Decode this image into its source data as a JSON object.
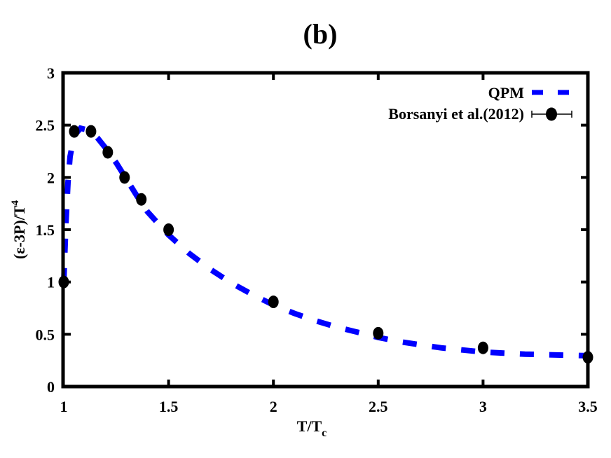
{
  "chart_data": {
    "type": "line",
    "title": "(b)",
    "xlabel": "T/T_c",
    "xlabel_main": "T/T",
    "xlabel_sub": "c",
    "ylabel": "(ε-3P)/T^4",
    "ylabel_main": "(ε-3P)/T",
    "ylabel_sup": "4",
    "xlim": [
      1,
      3.5
    ],
    "ylim": [
      0,
      3
    ],
    "xticks": [
      1,
      1.5,
      2,
      2.5,
      3,
      3.5
    ],
    "xtick_labels": [
      "1",
      "1.5",
      "2",
      "2.5",
      "3",
      "3.5"
    ],
    "yticks": [
      0,
      0.5,
      1,
      1.5,
      2,
      2.5,
      3
    ],
    "ytick_labels": [
      "0",
      "0.5",
      "1",
      "1.5",
      "2",
      "2.5",
      "3"
    ],
    "grid": false,
    "legend_position": "top-right",
    "series": [
      {
        "name": "QPM",
        "style": "dashed-line",
        "color": "#0000ff",
        "x": [
          1.0,
          1.01,
          1.02,
          1.03,
          1.05,
          1.08,
          1.12,
          1.16,
          1.2,
          1.25,
          1.3,
          1.35,
          1.4,
          1.5,
          1.6,
          1.7,
          1.8,
          1.9,
          2.0,
          2.1,
          2.2,
          2.3,
          2.4,
          2.5,
          2.6,
          2.7,
          2.8,
          2.9,
          3.0,
          3.1,
          3.2,
          3.3,
          3.4,
          3.5
        ],
        "y": [
          1.0,
          1.55,
          1.95,
          2.2,
          2.4,
          2.47,
          2.45,
          2.38,
          2.28,
          2.14,
          1.98,
          1.82,
          1.67,
          1.45,
          1.27,
          1.12,
          0.99,
          0.88,
          0.78,
          0.7,
          0.63,
          0.57,
          0.52,
          0.47,
          0.43,
          0.4,
          0.37,
          0.35,
          0.33,
          0.32,
          0.31,
          0.305,
          0.3,
          0.295
        ]
      },
      {
        "name": "Borsanyi et al.(2012)",
        "style": "points-with-errorbars",
        "color": "#000000",
        "x": [
          1.0,
          1.05,
          1.13,
          1.21,
          1.29,
          1.37,
          1.5,
          2.0,
          2.5,
          3.0,
          3.5
        ],
        "y": [
          1.0,
          2.44,
          2.44,
          2.24,
          2.0,
          1.79,
          1.5,
          0.81,
          0.51,
          0.37,
          0.28
        ]
      }
    ]
  },
  "legend": {
    "items": [
      {
        "label": "QPM"
      },
      {
        "label": "Borsanyi et al.(2012)"
      }
    ]
  }
}
